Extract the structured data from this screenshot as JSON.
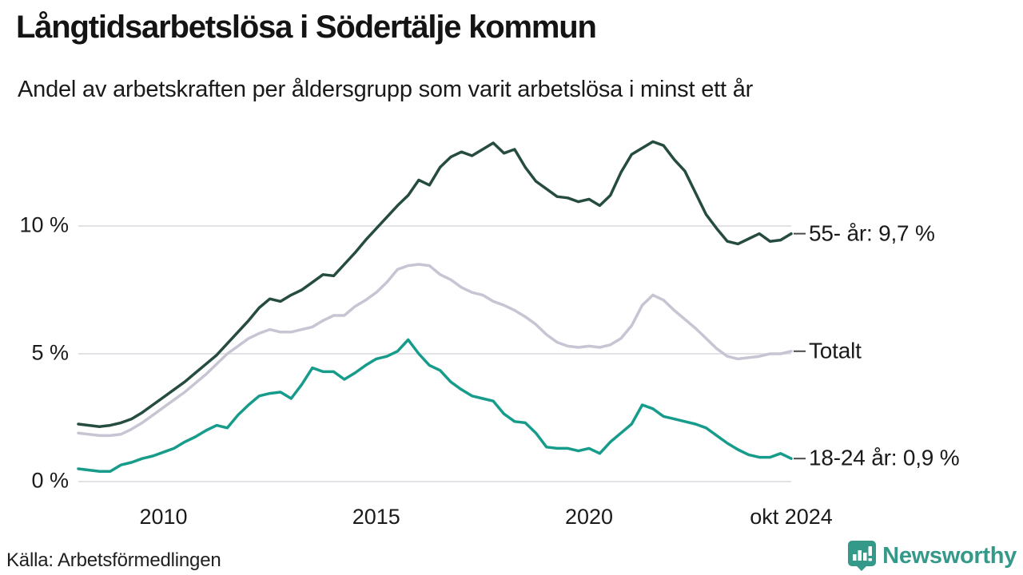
{
  "footer": {
    "source": "Källa: Arbetsförmedlingen",
    "brand": "Newsworthy"
  },
  "colors": {
    "line_55": "#264c41",
    "line_total": "#c7c4d3",
    "line_1824": "#179c8b",
    "grid": "#e3e3e7",
    "leader_dash": "#4a4a4a",
    "text": "#1a1a1a",
    "brand_teal": "#35998a"
  },
  "chart_data": {
    "type": "line",
    "title": "Långtidsarbetslösa i Södertälje kommun",
    "subtitle": "Andel av arbetskraften per åldersgrupp som varit arbetslösa i minst ett år",
    "source": "Källa: Arbetsförmedlingen",
    "grid": "horizontal-only",
    "legend_position": "right-end-labels",
    "x_unit": "decimal years, quarterly samples, Jan 2008 – Oct 2024",
    "x_range": [
      2008.0,
      2024.75
    ],
    "ylim": [
      0,
      14
    ],
    "yticks": [
      {
        "value": 0,
        "label": "0 %"
      },
      {
        "value": 5,
        "label": "5 %"
      },
      {
        "value": 10,
        "label": "10 %"
      }
    ],
    "xticks": [
      {
        "value": 2010,
        "label": "2010"
      },
      {
        "value": 2015,
        "label": "2015"
      },
      {
        "value": 2020,
        "label": "2020"
      },
      {
        "value": 2024.75,
        "label": "okt 2024"
      }
    ],
    "x": [
      2008,
      2008.25,
      2008.5,
      2008.75,
      2009,
      2009.25,
      2009.5,
      2009.75,
      2010,
      2010.25,
      2010.5,
      2010.75,
      2011,
      2011.25,
      2011.5,
      2011.75,
      2012,
      2012.25,
      2012.5,
      2012.75,
      2013,
      2013.25,
      2013.5,
      2013.75,
      2014,
      2014.25,
      2014.5,
      2014.75,
      2015,
      2015.25,
      2015.5,
      2015.75,
      2016,
      2016.25,
      2016.5,
      2016.75,
      2017,
      2017.25,
      2017.5,
      2017.75,
      2018,
      2018.25,
      2018.5,
      2018.75,
      2019,
      2019.25,
      2019.5,
      2019.75,
      2020,
      2020.25,
      2020.5,
      2020.75,
      2021,
      2021.25,
      2021.5,
      2021.75,
      2022,
      2022.25,
      2022.5,
      2022.75,
      2023,
      2023.25,
      2023.5,
      2023.75,
      2024,
      2024.25,
      2024.5,
      2024.75
    ],
    "series": [
      {
        "name": "Totalt",
        "end_label": "Totalt",
        "color_key": "line_total",
        "last_value": 5.1,
        "values": [
          1.9,
          1.85,
          1.8,
          1.8,
          1.85,
          2.05,
          2.3,
          2.6,
          2.9,
          3.2,
          3.5,
          3.85,
          4.2,
          4.6,
          5.0,
          5.3,
          5.6,
          5.8,
          5.95,
          5.85,
          5.85,
          5.95,
          6.05,
          6.3,
          6.5,
          6.5,
          6.85,
          7.1,
          7.4,
          7.8,
          8.3,
          8.45,
          8.5,
          8.45,
          8.1,
          7.9,
          7.6,
          7.4,
          7.3,
          7.05,
          6.9,
          6.7,
          6.45,
          6.15,
          5.75,
          5.45,
          5.3,
          5.25,
          5.3,
          5.25,
          5.35,
          5.6,
          6.1,
          6.9,
          7.3,
          7.1,
          6.7,
          6.35,
          6.0,
          5.6,
          5.2,
          4.9,
          4.8,
          4.85,
          4.9,
          5.0,
          5.0,
          5.1
        ]
      },
      {
        "name": "18-24 år",
        "end_label": "18-24 år: 0,9 %",
        "color_key": "line_1824",
        "last_value": 0.9,
        "values": [
          0.5,
          0.45,
          0.4,
          0.4,
          0.65,
          0.75,
          0.9,
          1.0,
          1.15,
          1.3,
          1.55,
          1.75,
          2.0,
          2.2,
          2.1,
          2.6,
          3.0,
          3.35,
          3.45,
          3.5,
          3.25,
          3.8,
          4.45,
          4.3,
          4.3,
          4.0,
          4.25,
          4.55,
          4.8,
          4.9,
          5.1,
          5.55,
          5.0,
          4.55,
          4.35,
          3.9,
          3.6,
          3.35,
          3.25,
          3.15,
          2.65,
          2.35,
          2.3,
          1.9,
          1.35,
          1.3,
          1.3,
          1.2,
          1.3,
          1.1,
          1.55,
          1.9,
          2.25,
          3.0,
          2.85,
          2.55,
          2.45,
          2.35,
          2.25,
          2.1,
          1.8,
          1.5,
          1.25,
          1.05,
          0.95,
          0.95,
          1.1,
          0.9
        ]
      },
      {
        "name": "55- år",
        "end_label": "55- år: 9,7 %",
        "color_key": "line_55",
        "last_value": 9.7,
        "values": [
          2.25,
          2.2,
          2.15,
          2.2,
          2.3,
          2.45,
          2.7,
          3.0,
          3.3,
          3.6,
          3.9,
          4.25,
          4.6,
          4.95,
          5.4,
          5.85,
          6.3,
          6.8,
          7.15,
          7.05,
          7.3,
          7.5,
          7.8,
          8.1,
          8.05,
          8.5,
          8.95,
          9.45,
          9.9,
          10.35,
          10.8,
          11.2,
          11.8,
          11.6,
          12.3,
          12.7,
          12.9,
          12.75,
          13.0,
          13.25,
          12.85,
          13.0,
          12.3,
          11.75,
          11.45,
          11.15,
          11.1,
          10.95,
          11.05,
          10.8,
          11.2,
          12.1,
          12.8,
          13.05,
          13.3,
          13.15,
          12.6,
          12.15,
          11.3,
          10.45,
          9.9,
          9.4,
          9.3,
          9.5,
          9.7,
          9.4,
          9.45,
          9.7
        ]
      }
    ]
  }
}
